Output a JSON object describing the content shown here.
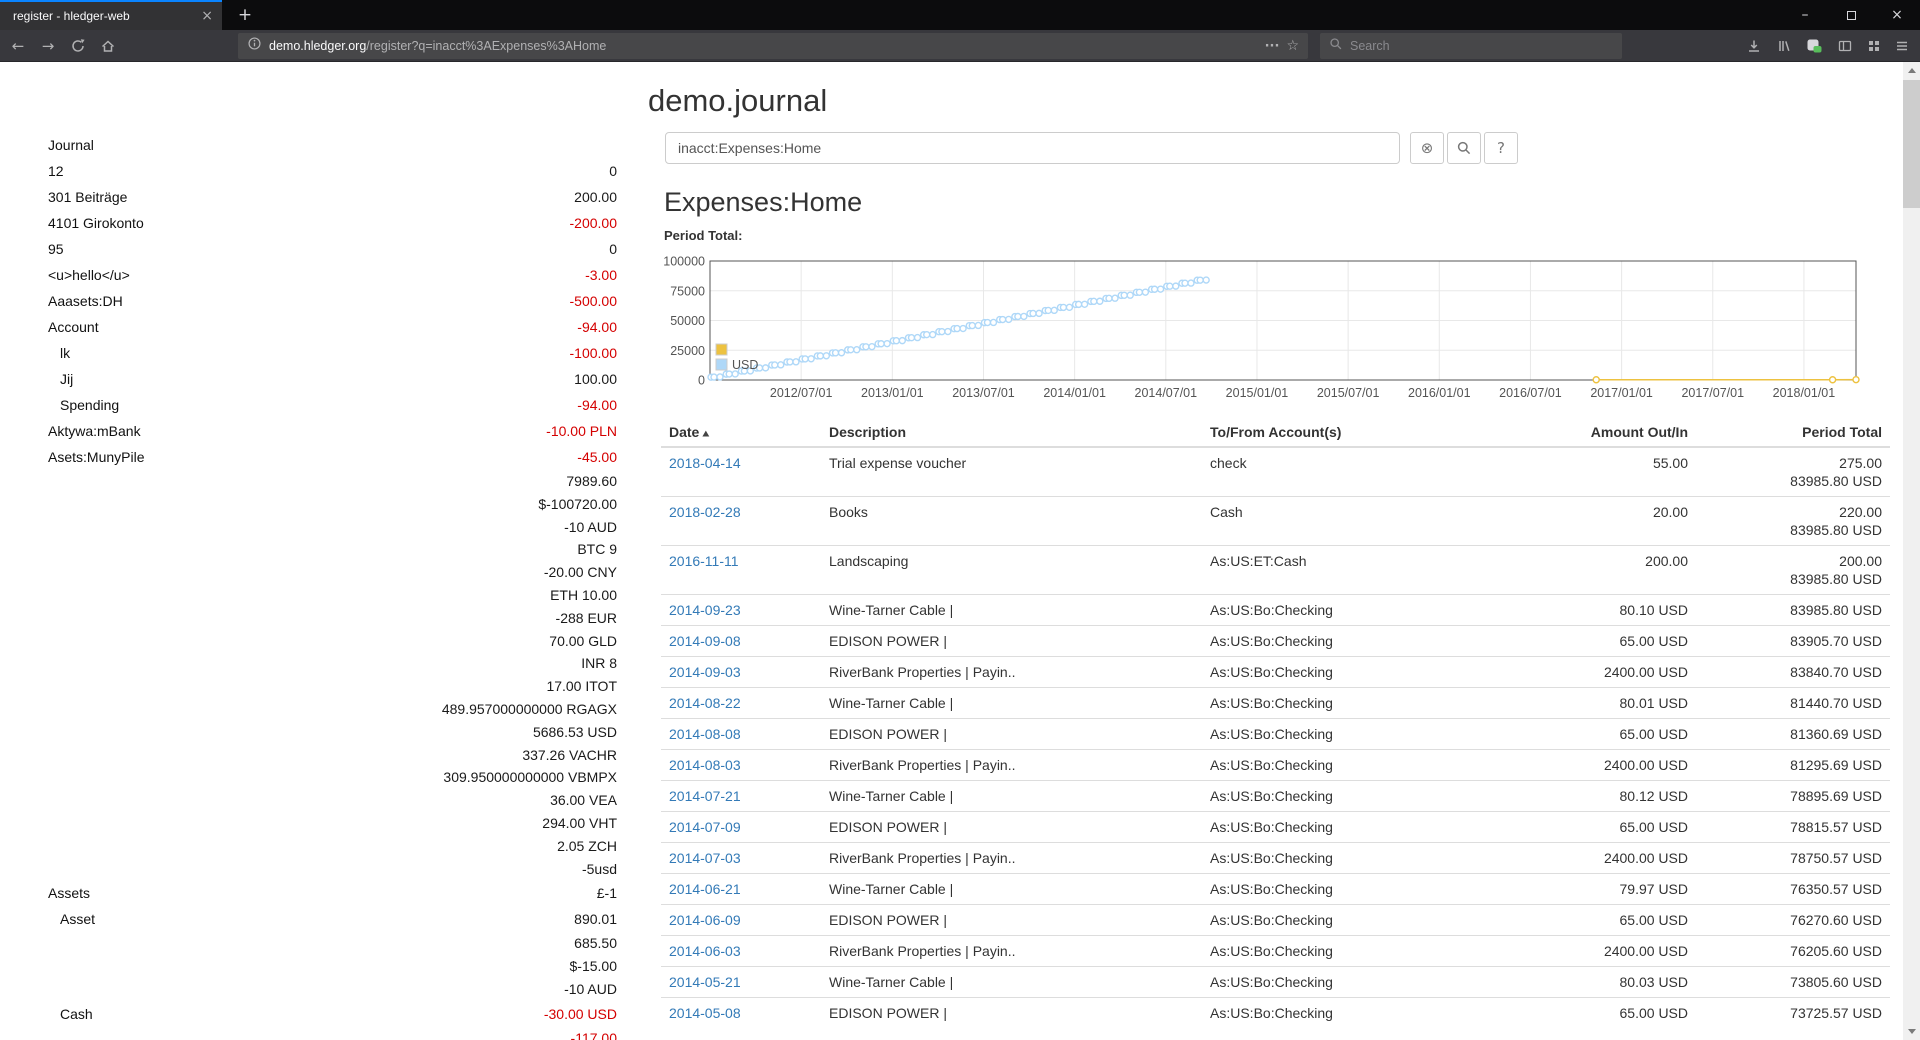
{
  "colors": {
    "negative": "#d40000",
    "link": "#337ab7",
    "tab_accent": "#0a84ff",
    "badge_green": "#58bd5b",
    "chart_yellow": "#edc240",
    "chart_blue": "#afd8f8"
  },
  "icons": {
    "tab_close": "×",
    "new_tab": "+",
    "win_minimize": "–",
    "win_close": "×",
    "back": "←",
    "forward": "→",
    "url_dots": "···",
    "star": "☆",
    "clear": "⊗",
    "help": "?",
    "sort_asc": "▲"
  },
  "browser": {
    "tab_title": "register - hledger-web",
    "url_domain": "demo.hledger.org",
    "url_path": "/register?q=inacct%3AExpenses%3AHome",
    "search_placeholder": "Search"
  },
  "page": {
    "title": "demo.journal",
    "search_value": "inacct:Expenses:Home",
    "heading": "Expenses:Home",
    "period_total_label": "Period Total:",
    "sidebar": {
      "title": "Journal",
      "items": [
        {
          "name": "12",
          "indent": 0,
          "amounts": [
            {
              "text": "0",
              "negative": false
            }
          ]
        },
        {
          "name": "301 Beiträge",
          "indent": 0,
          "amounts": [
            {
              "text": "200.00",
              "negative": false
            }
          ]
        },
        {
          "name": "4101 Girokonto",
          "indent": 0,
          "amounts": [
            {
              "text": "-200.00",
              "negative": true
            }
          ]
        },
        {
          "name": "95",
          "indent": 0,
          "amounts": [
            {
              "text": "0",
              "negative": false
            }
          ]
        },
        {
          "name": "<u>hello</u>",
          "indent": 0,
          "amounts": [
            {
              "text": "-3.00",
              "negative": true
            }
          ]
        },
        {
          "name": "Aaasets:DH",
          "indent": 0,
          "amounts": [
            {
              "text": "-500.00",
              "negative": true
            }
          ]
        },
        {
          "name": "Account",
          "indent": 0,
          "amounts": [
            {
              "text": "-94.00",
              "negative": true
            }
          ]
        },
        {
          "name": "lk",
          "indent": 1,
          "amounts": [
            {
              "text": "-100.00",
              "negative": true
            }
          ]
        },
        {
          "name": "Jij",
          "indent": 1,
          "amounts": [
            {
              "text": "100.00",
              "negative": false
            }
          ]
        },
        {
          "name": "Spending",
          "indent": 1,
          "amounts": [
            {
              "text": "-94.00",
              "negative": true
            }
          ]
        },
        {
          "name": "Aktywa:mBank",
          "indent": 0,
          "amounts": [
            {
              "text": "-10.00 PLN",
              "negative": true
            }
          ]
        },
        {
          "name": "Asets:MunyPile",
          "indent": 0,
          "amounts": [
            {
              "text": "-45.00",
              "negative": true
            }
          ]
        },
        {
          "name": "",
          "indent": 0,
          "amounts": [
            {
              "text": "7989.60",
              "negative": false
            },
            {
              "text": "$-100720.00",
              "negative": false
            },
            {
              "text": "-10 AUD",
              "negative": false
            },
            {
              "text": "BTC 9",
              "negative": false
            },
            {
              "text": "-20.00 CNY",
              "negative": false
            },
            {
              "text": "ETH 10.00",
              "negative": false
            },
            {
              "text": "-288 EUR",
              "negative": false
            },
            {
              "text": "70.00 GLD",
              "negative": false
            },
            {
              "text": "INR 8",
              "negative": false
            },
            {
              "text": "17.00 ITOT",
              "negative": false
            },
            {
              "text": "489.957000000000 RGAGX",
              "negative": false
            },
            {
              "text": "5686.53 USD",
              "negative": false
            },
            {
              "text": "337.26 VACHR",
              "negative": false
            },
            {
              "text": "309.950000000000 VBMPX",
              "negative": false
            },
            {
              "text": "36.00 VEA",
              "negative": false
            },
            {
              "text": "294.00 VHT",
              "negative": false
            },
            {
              "text": "2.05 ZCH",
              "negative": false
            },
            {
              "text": "-5usd",
              "negative": false
            }
          ]
        },
        {
          "name": "Assets",
          "indent": 0,
          "amounts": [
            {
              "text": "£-1",
              "negative": false
            }
          ]
        },
        {
          "name": "Asset",
          "indent": 1,
          "amounts": [
            {
              "text": "890.01",
              "negative": false
            }
          ]
        },
        {
          "name": "",
          "indent": 0,
          "amounts": [
            {
              "text": "685.50",
              "negative": false
            },
            {
              "text": "$-15.00",
              "negative": false
            },
            {
              "text": "-10 AUD",
              "negative": false
            }
          ]
        },
        {
          "name": "Cash",
          "indent": 1,
          "amounts": [
            {
              "text": "-30.00 USD",
              "negative": true
            }
          ]
        },
        {
          "name": "",
          "indent": 0,
          "amounts": [
            {
              "text": "-117.00",
              "negative": true
            }
          ]
        }
      ]
    },
    "register": {
      "columns": [
        "Date",
        "Description",
        "To/From Account(s)",
        "Amount Out/In",
        "Period Total"
      ],
      "rows": [
        {
          "date": "2018-04-14",
          "description": "Trial expense voucher",
          "account": "check",
          "amount": "55.00",
          "period": [
            "275.00",
            "83985.80 USD"
          ]
        },
        {
          "date": "2018-02-28",
          "description": "Books",
          "account": "Cash",
          "amount": "20.00",
          "period": [
            "220.00",
            "83985.80 USD"
          ]
        },
        {
          "date": "2016-11-11",
          "description": "Landscaping",
          "account": "As:US:ET:Cash",
          "amount": "200.00",
          "period": [
            "200.00",
            "83985.80 USD"
          ]
        },
        {
          "date": "2014-09-23",
          "description": "Wine-Tarner Cable |",
          "account": "As:US:Bo:Checking",
          "amount": "80.10 USD",
          "period": [
            "83985.80 USD"
          ]
        },
        {
          "date": "2014-09-08",
          "description": "EDISON POWER |",
          "account": "As:US:Bo:Checking",
          "amount": "65.00 USD",
          "period": [
            "83905.70 USD"
          ]
        },
        {
          "date": "2014-09-03",
          "description": "RiverBank Properties | Payin..",
          "account": "As:US:Bo:Checking",
          "amount": "2400.00 USD",
          "period": [
            "83840.70 USD"
          ]
        },
        {
          "date": "2014-08-22",
          "description": "Wine-Tarner Cable |",
          "account": "As:US:Bo:Checking",
          "amount": "80.01 USD",
          "period": [
            "81440.70 USD"
          ]
        },
        {
          "date": "2014-08-08",
          "description": "EDISON POWER |",
          "account": "As:US:Bo:Checking",
          "amount": "65.00 USD",
          "period": [
            "81360.69 USD"
          ]
        },
        {
          "date": "2014-08-03",
          "description": "RiverBank Properties | Payin..",
          "account": "As:US:Bo:Checking",
          "amount": "2400.00 USD",
          "period": [
            "81295.69 USD"
          ]
        },
        {
          "date": "2014-07-21",
          "description": "Wine-Tarner Cable |",
          "account": "As:US:Bo:Checking",
          "amount": "80.12 USD",
          "period": [
            "78895.69 USD"
          ]
        },
        {
          "date": "2014-07-09",
          "description": "EDISON POWER |",
          "account": "As:US:Bo:Checking",
          "amount": "65.00 USD",
          "period": [
            "78815.57 USD"
          ]
        },
        {
          "date": "2014-07-03",
          "description": "RiverBank Properties | Payin..",
          "account": "As:US:Bo:Checking",
          "amount": "2400.00 USD",
          "period": [
            "78750.57 USD"
          ]
        },
        {
          "date": "2014-06-21",
          "description": "Wine-Tarner Cable |",
          "account": "As:US:Bo:Checking",
          "amount": "79.97 USD",
          "period": [
            "76350.57 USD"
          ]
        },
        {
          "date": "2014-06-09",
          "description": "EDISON POWER |",
          "account": "As:US:Bo:Checking",
          "amount": "65.00 USD",
          "period": [
            "76270.60 USD"
          ]
        },
        {
          "date": "2014-06-03",
          "description": "RiverBank Properties | Payin..",
          "account": "As:US:Bo:Checking",
          "amount": "2400.00 USD",
          "period": [
            "76205.60 USD"
          ]
        },
        {
          "date": "2014-05-21",
          "description": "Wine-Tarner Cable |",
          "account": "As:US:Bo:Checking",
          "amount": "80.03 USD",
          "period": [
            "73805.60 USD"
          ]
        },
        {
          "date": "2014-05-08",
          "description": "EDISON POWER |",
          "account": "As:US:Bo:Checking",
          "amount": "65.00 USD",
          "period": [
            "73725.57 USD"
          ]
        }
      ]
    }
  },
  "chart_data": {
    "type": "line",
    "title": "Period Total:",
    "x_axis": {
      "min": "2012/01/01",
      "max": "2018/04/14",
      "ticks": [
        "2012/07/01",
        "2013/01/01",
        "2013/07/01",
        "2014/01/01",
        "2014/07/01",
        "2015/01/01",
        "2015/07/01",
        "2016/01/01",
        "2016/07/01",
        "2017/01/01",
        "2017/07/01",
        "2018/01/01"
      ]
    },
    "y_axis": {
      "min": 0,
      "max": 100000,
      "ticks": [
        0,
        25000,
        50000,
        75000,
        100000
      ]
    },
    "legend": [
      {
        "label": "",
        "color": "#edc240"
      },
      {
        "label": "USD",
        "color": "#afd8f8"
      }
    ],
    "series": [
      {
        "name": "USD",
        "color": "#afd8f8",
        "style": "line+points",
        "cumulative_monthly": {
          "start": "2012-01",
          "months": 33,
          "txns": [
            {
              "day": 3,
              "amount": 2400.0
            },
            {
              "day": 9,
              "amount": 65.0
            },
            {
              "day": 21,
              "amount": 80.0
            }
          ],
          "final_total": 83985.8
        }
      },
      {
        "name": "",
        "color": "#edc240",
        "style": "line+points",
        "points": [
          [
            "2016/11/11",
            200.0
          ],
          [
            "2018/02/28",
            220.0
          ],
          [
            "2018/04/14",
            275.0
          ]
        ]
      }
    ]
  }
}
